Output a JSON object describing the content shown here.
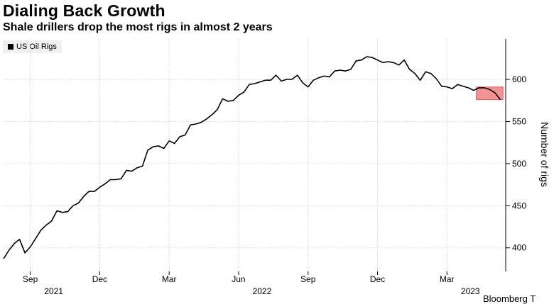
{
  "chart_data": {
    "type": "line",
    "title": "Dialing Back Growth",
    "subtitle": "Shale drillers drop the most rigs in almost 2 years",
    "ylabel": "Number of rigs",
    "legend": {
      "placement": "top-left",
      "entries": [
        "US Oil Rigs"
      ]
    },
    "y_ticks": [
      400,
      450,
      500,
      550,
      600
    ],
    "ylim": [
      372,
      648
    ],
    "x_ticks": [
      {
        "label": "Sep",
        "year": "2021",
        "x": 5
      },
      {
        "label": "Dec",
        "year": "",
        "x": 18
      },
      {
        "label": "Mar",
        "year": "",
        "x": 31
      },
      {
        "label": "Jun",
        "year": "2022",
        "x": 44
      },
      {
        "label": "Sep",
        "year": "",
        "x": 57
      },
      {
        "label": "Dec",
        "year": "",
        "x": 70
      },
      {
        "label": "Mar",
        "year": "2023",
        "x": 83
      }
    ],
    "xlim": [
      0,
      94
    ],
    "grid": true,
    "highlight": {
      "x_start": 88.5,
      "x_end": 93.5,
      "y_start": 576,
      "y_end": 591,
      "color": "#f08080"
    },
    "series": [
      {
        "name": "US Oil Rigs",
        "color": "#000000",
        "x": [
          0,
          1,
          2,
          3,
          4,
          5,
          6,
          7,
          8,
          9,
          10,
          11,
          12,
          13,
          14,
          15,
          16,
          17,
          18,
          19,
          20,
          21,
          22,
          23,
          24,
          25,
          26,
          27,
          28,
          29,
          30,
          31,
          32,
          33,
          34,
          35,
          36,
          37,
          38,
          39,
          40,
          41,
          42,
          43,
          44,
          45,
          46,
          47,
          48,
          49,
          50,
          51,
          52,
          53,
          54,
          55,
          56,
          57,
          58,
          59,
          60,
          61,
          62,
          63,
          64,
          65,
          66,
          67,
          68,
          69,
          70,
          71,
          72,
          73,
          74,
          75,
          76,
          77,
          78,
          79,
          80,
          81,
          82,
          83,
          84,
          85,
          86,
          87,
          88,
          89,
          90,
          91,
          92,
          93
        ],
        "y": [
          387,
          397,
          405,
          410,
          394,
          401,
          411,
          421,
          427,
          432,
          444,
          442,
          443,
          450,
          453,
          461,
          467,
          467,
          472,
          476,
          481,
          481,
          482,
          492,
          491,
          495,
          497,
          516,
          520,
          521,
          518,
          527,
          524,
          532,
          534,
          546,
          547,
          549,
          553,
          558,
          564,
          577,
          574,
          575,
          581,
          585,
          594,
          595,
          597,
          599,
          599,
          605,
          598,
          600,
          600,
          605,
          596,
          591,
          599,
          602,
          604,
          603,
          610,
          611,
          610,
          612,
          622,
          623,
          627,
          626,
          623,
          620,
          621,
          620,
          617,
          623,
          612,
          607,
          599,
          609,
          607,
          601,
          592,
          591,
          589,
          594,
          592,
          590,
          587,
          590,
          590,
          588,
          584,
          576
        ]
      }
    ]
  },
  "source_text": "Bloomberg T"
}
